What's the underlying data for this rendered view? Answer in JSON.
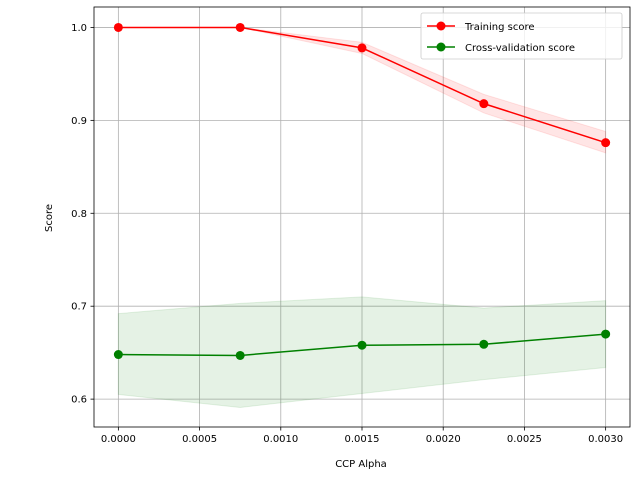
{
  "chart_data": {
    "type": "line",
    "xlabel": "CCP Alpha",
    "ylabel": "Score",
    "xlim": [
      -0.00015,
      0.00315
    ],
    "ylim": [
      0.57,
      1.022
    ],
    "grid": true,
    "legend_position": "top-right",
    "x": [
      0.0,
      0.00075,
      0.0015,
      0.00225,
      0.003
    ],
    "x_ticks": [
      0.0,
      0.0005,
      0.001,
      0.0015,
      0.002,
      0.0025,
      0.003
    ],
    "x_tick_labels": [
      "0.0000",
      "0.0005",
      "0.0010",
      "0.0015",
      "0.0020",
      "0.0025",
      "0.0030"
    ],
    "y_ticks": [
      0.6,
      0.7,
      0.8,
      0.9,
      1.0
    ],
    "y_tick_labels": [
      "0.6",
      "0.7",
      "0.8",
      "0.9",
      "1.0"
    ],
    "series": [
      {
        "name": "Training score",
        "color": "#ff0000",
        "band_color": "#ff0000",
        "values": [
          1.0,
          1.0,
          0.978,
          0.918,
          0.876
        ],
        "band_lower": [
          1.0,
          1.0,
          0.972,
          0.908,
          0.865
        ],
        "band_upper": [
          1.0,
          1.0,
          0.984,
          0.928,
          0.888
        ]
      },
      {
        "name": "Cross-validation score",
        "color": "#008000",
        "band_color": "#008000",
        "values": [
          0.648,
          0.647,
          0.658,
          0.659,
          0.67
        ],
        "band_lower": [
          0.605,
          0.591,
          0.606,
          0.621,
          0.634
        ],
        "band_upper": [
          0.692,
          0.703,
          0.71,
          0.698,
          0.706
        ]
      }
    ]
  }
}
